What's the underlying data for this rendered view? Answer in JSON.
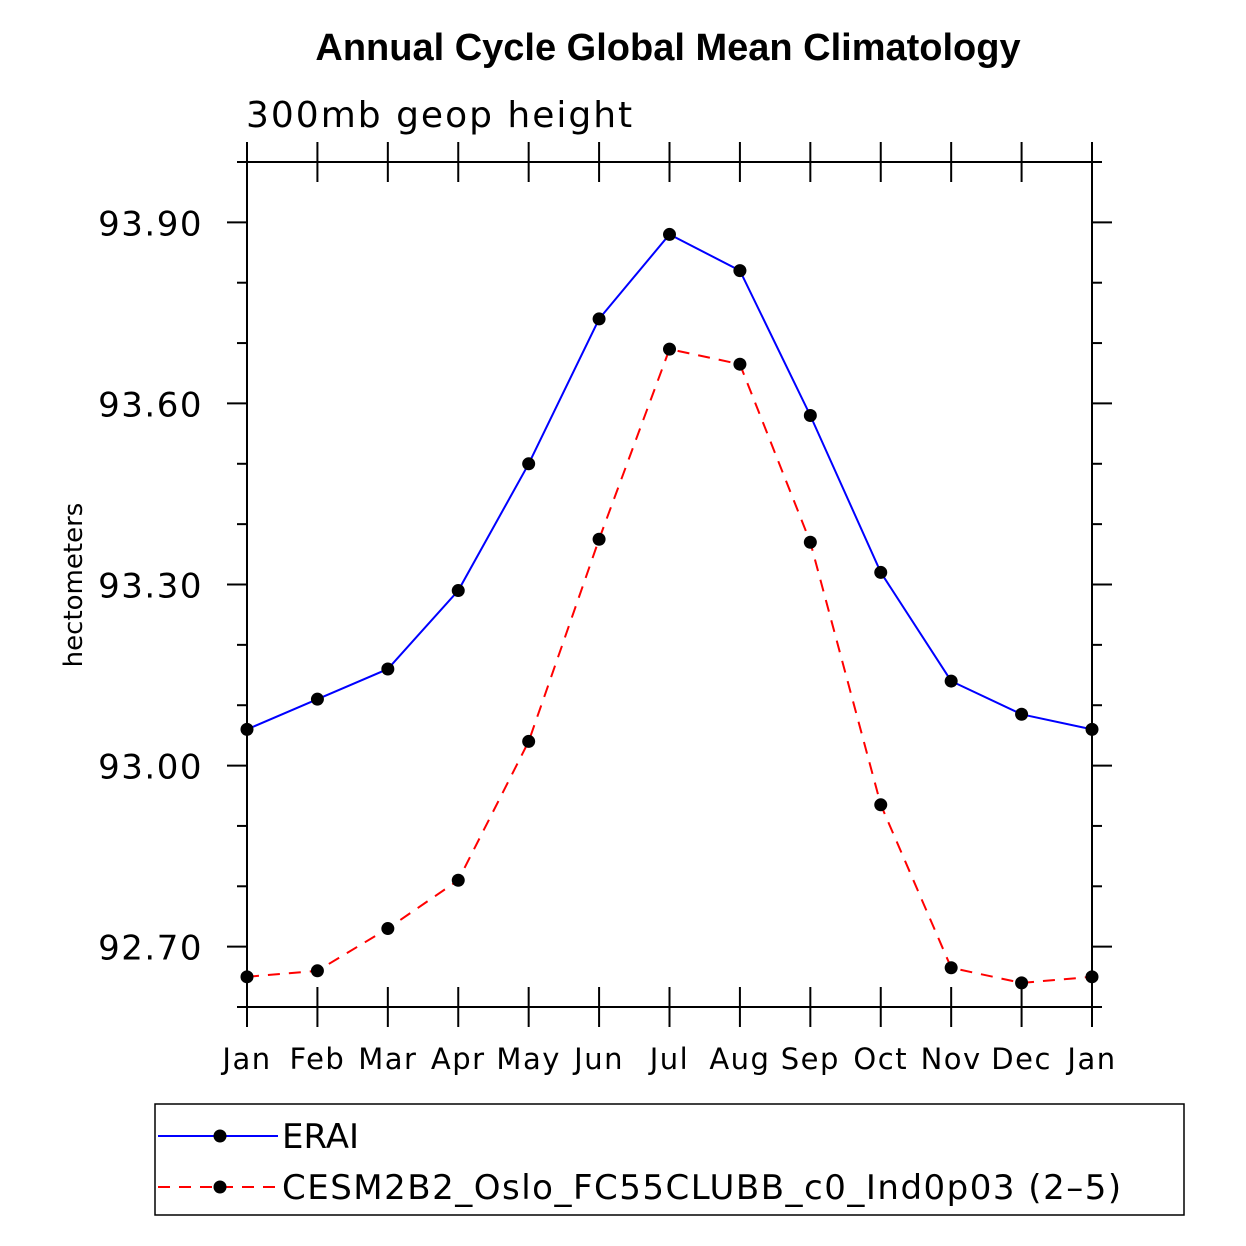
{
  "chart_data": {
    "type": "line",
    "title": "Annual Cycle Global Mean Climatology",
    "subtitle": "300mb geop height",
    "xlabel": "",
    "ylabel": "hectometers",
    "categories": [
      "Jan",
      "Feb",
      "Mar",
      "Apr",
      "May",
      "Jun",
      "Jul",
      "Aug",
      "Sep",
      "Oct",
      "Nov",
      "Dec",
      "Jan"
    ],
    "ylim": [
      92.6,
      94.0
    ],
    "yticks_major": [
      92.7,
      93.0,
      93.3,
      93.6,
      93.9
    ],
    "ytick_labels": [
      "92.70",
      "93.00",
      "93.30",
      "93.60",
      "93.90"
    ],
    "yticks_minor_step": 0.1,
    "grid": false,
    "legend_position": "bottom",
    "series": [
      {
        "name": "ERAI",
        "color": "#0000ff",
        "dash": "solid",
        "marker": "filled-circle",
        "values": [
          93.06,
          93.11,
          93.16,
          93.29,
          93.5,
          93.74,
          93.88,
          93.82,
          93.58,
          93.32,
          93.14,
          93.085,
          93.06
        ]
      },
      {
        "name": "CESM2B2_Oslo_FC55CLUBB_c0_Ind0p03 (2–5)",
        "color": "#ff0000",
        "dash": "dashed",
        "marker": "filled-circle",
        "values": [
          92.65,
          92.66,
          92.73,
          92.81,
          93.04,
          93.375,
          93.69,
          93.665,
          93.37,
          92.935,
          92.665,
          92.64,
          92.65
        ]
      }
    ]
  }
}
